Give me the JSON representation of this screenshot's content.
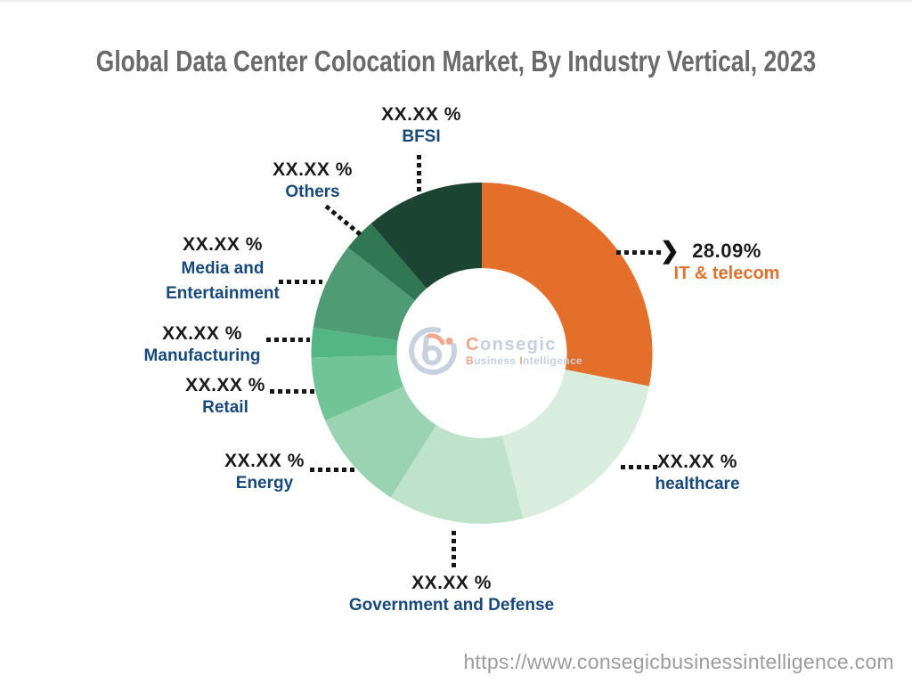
{
  "page": {
    "title": "Global Data Center Colocation Market, By Industry Vertical, 2023",
    "footer_url": "https://www.consegicbusinessintelligence.com"
  },
  "brand_colors": {
    "title_gray": "#6a6a6a",
    "url_gray": "#9c9c9c",
    "value_black": "#1a1a1a",
    "category_navy": "#17497c",
    "accent_orange": "#e0702e",
    "logo_muted_blue": "#c6cfdf",
    "logo_light_orange": "#f0a488"
  },
  "logo": {
    "icon": "b-swoosh-mark",
    "brand_c": "C",
    "brand_rest": "onsegic",
    "tag_b": "B",
    "tag_usiness": "usiness ",
    "tag_i": "I",
    "tag_ntelligence": "ntelligence"
  },
  "chart_data": {
    "type": "pie",
    "subtype": "donut",
    "title": "Global Data Center Colocation Market, By Industry Vertical, 2023",
    "start_angle_deg": 0,
    "direction": "clockwise",
    "inner_radius_ratio": 0.5,
    "legend": "none",
    "label_style": "outside-callouts-dotted-leaders",
    "center": {
      "x": 541,
      "y": 396.5,
      "outer_radius": 191.5,
      "inner_radius": 95.5
    },
    "series": [
      {
        "label": "IT & telecom",
        "label_display": "IT & telecom",
        "display_value": "28.09%",
        "value_pct_est": 28.09,
        "color": "#e36f2b",
        "label_color": "#e0702e"
      },
      {
        "label": "healthcare",
        "label_display": "healthcare",
        "display_value": "XX.XX %",
        "value_pct_est": 18.02,
        "color": "#d8eddd",
        "label_color": "#17497c"
      },
      {
        "label": "Government and Defense",
        "label_display": "Government and Defense",
        "display_value": "XX.XX %",
        "value_pct_est": 12.86,
        "color": "#bfe3ca",
        "label_color": "#17497c"
      },
      {
        "label": "Energy",
        "label_display": "Energy",
        "display_value": "XX.XX %",
        "value_pct_est": 9.58,
        "color": "#9ad3b1",
        "label_color": "#17497c"
      },
      {
        "label": "Retail",
        "label_display": "Retail",
        "display_value": "XX.XX %",
        "value_pct_est": 6.03,
        "color": "#70c498",
        "label_color": "#17497c"
      },
      {
        "label": "Manufacturing",
        "label_display": "Manufacturing",
        "display_value": "XX.XX %",
        "value_pct_est": 2.81,
        "color": "#55b685",
        "label_color": "#17497c"
      },
      {
        "label": "Media and Entertainment",
        "label_display": "Media and\nEntertainment",
        "display_value": "XX.XX %",
        "value_pct_est": 8.25,
        "color": "#4e9b74",
        "label_color": "#17497c"
      },
      {
        "label": "Others",
        "label_display": "Others",
        "display_value": "XX.XX %",
        "value_pct_est": 3.11,
        "color": "#2f7853",
        "label_color": "#17497c"
      },
      {
        "label": "BFSI",
        "label_display": "BFSI",
        "display_value": "XX.XX %",
        "value_pct_est": 11.25,
        "color": "#1c4433",
        "label_color": "#17497c"
      }
    ]
  }
}
